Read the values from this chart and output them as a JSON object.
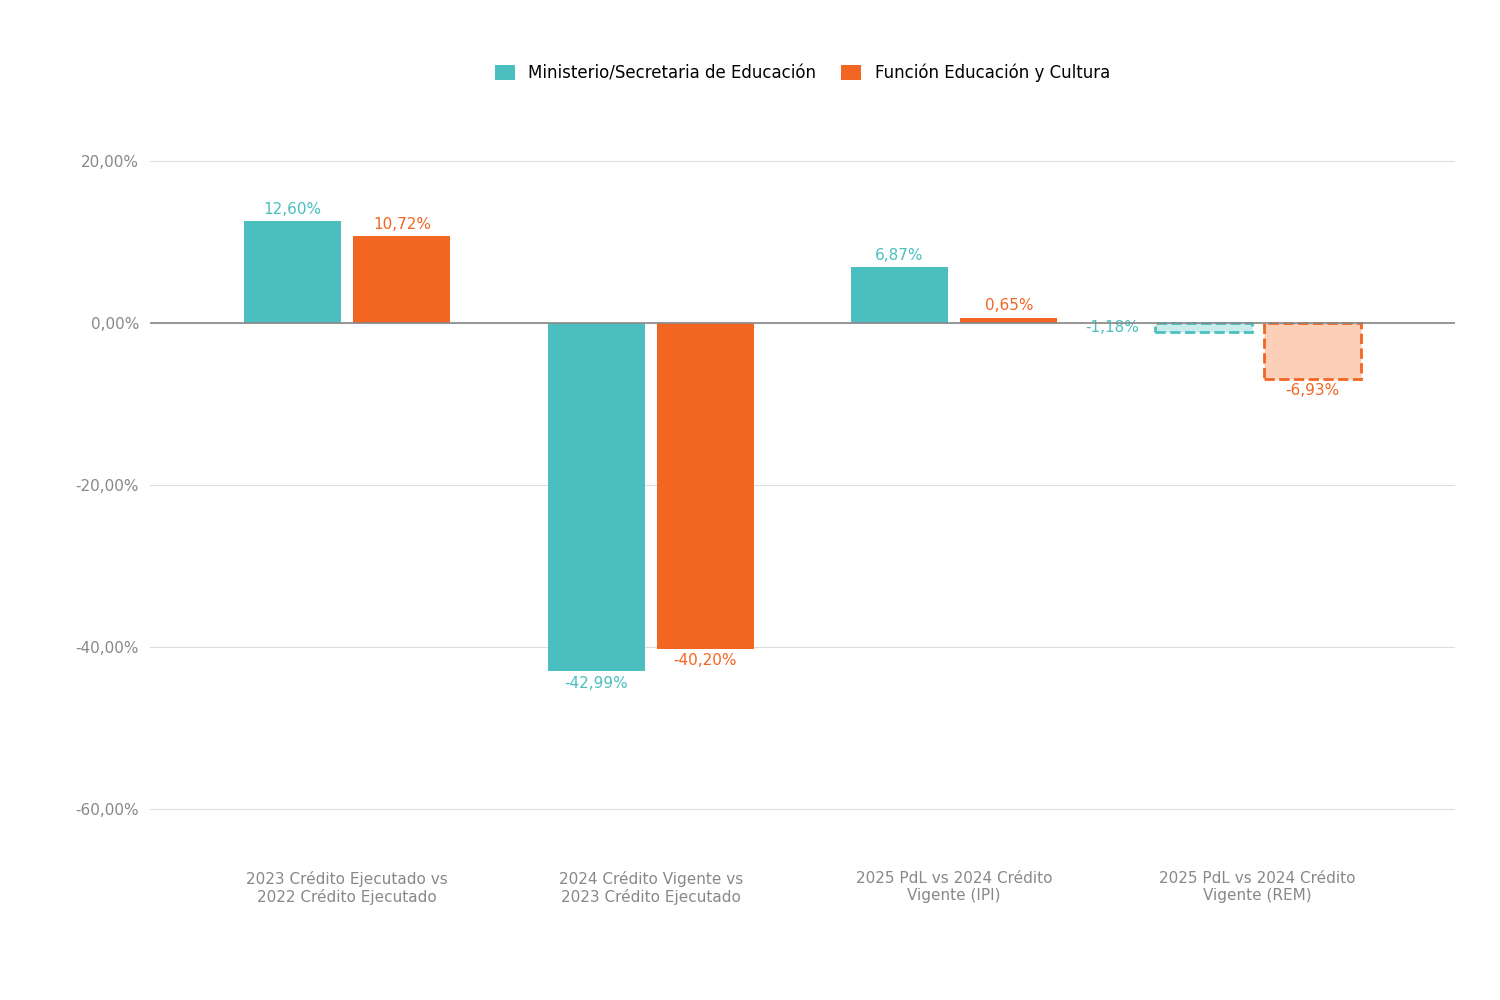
{
  "categories": [
    "2023 Crédito Ejecutado vs\n2022 Crédito Ejecutado",
    "2024 Crédito Vigente vs\n2023 Crédito Ejecutado",
    "2025 PdL vs 2024 Crédito\nVigente (IPI)",
    "2025 PdL vs 2024 Crédito\nVigente (REM)"
  ],
  "ministerio_values": [
    12.6,
    -42.99,
    6.87,
    -1.18
  ],
  "funcion_values": [
    10.72,
    -40.2,
    0.65,
    -6.93
  ],
  "ministerio_color": "#4BBFBF",
  "funcion_color": "#F26522",
  "ministerio_label": "Ministerio/Secretaria de Educación",
  "funcion_label": "Función Educación y Cultura",
  "ministerio_dashed": [
    false,
    false,
    false,
    true
  ],
  "funcion_dashed": [
    false,
    false,
    false,
    true
  ],
  "ministerio_dashed_facecolor": "#C8ECEC",
  "funcion_dashed_facecolor": "#FBCFB8",
  "background_color": "#FFFFFF",
  "ylim": [
    -65,
    25
  ],
  "yticks": [
    -60,
    -40,
    -20,
    0,
    20
  ],
  "ytick_labels": [
    "-60,00%",
    "-40,00%",
    "-20,00%",
    "0,00%",
    "20,00%"
  ],
  "bar_width": 0.32,
  "label_fontsize": 12,
  "tick_fontsize": 11,
  "value_fontsize": 11,
  "grid_color": "#DDDDDD",
  "zero_line_color": "#888888",
  "tick_color": "#888888"
}
